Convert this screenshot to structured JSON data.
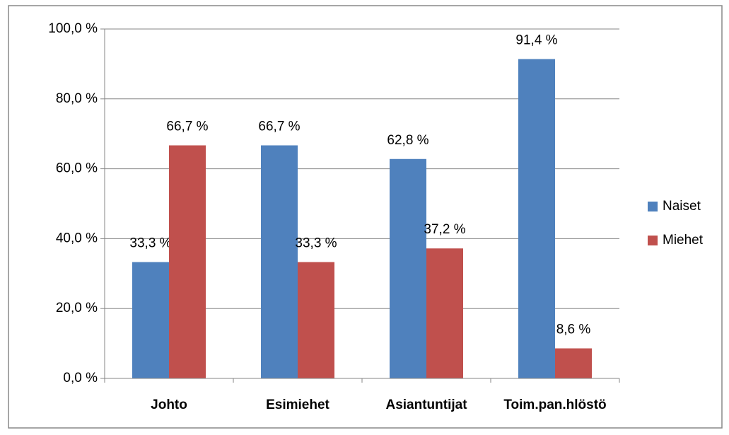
{
  "chart_data": {
    "type": "bar",
    "categories": [
      "Johto",
      "Esimiehet",
      "Asiantuntijat",
      "Toim.pan.hlöstö"
    ],
    "series": [
      {
        "name": "Naiset",
        "color": "#4f81bd",
        "values": [
          33.3,
          66.7,
          62.8,
          91.4
        ],
        "value_labels": [
          "33,3 %",
          "66,7 %",
          "62,8 %",
          "91,4 %"
        ]
      },
      {
        "name": "Miehet",
        "color": "#c0504d",
        "values": [
          66.7,
          33.3,
          37.2,
          8.6
        ],
        "value_labels": [
          "66,7 %",
          "33,3 %",
          "37,2 %",
          "8,6 %"
        ]
      }
    ],
    "ylim": [
      0,
      100
    ],
    "yticks": [
      {
        "value": 0,
        "label": "0,0 %"
      },
      {
        "value": 20,
        "label": "20,0 %"
      },
      {
        "value": 40,
        "label": "40,0 %"
      },
      {
        "value": 60,
        "label": "60,0 %"
      },
      {
        "value": 80,
        "label": "80,0 %"
      },
      {
        "value": 100,
        "label": "100,0 %"
      }
    ],
    "grid": true,
    "legend": "right"
  }
}
